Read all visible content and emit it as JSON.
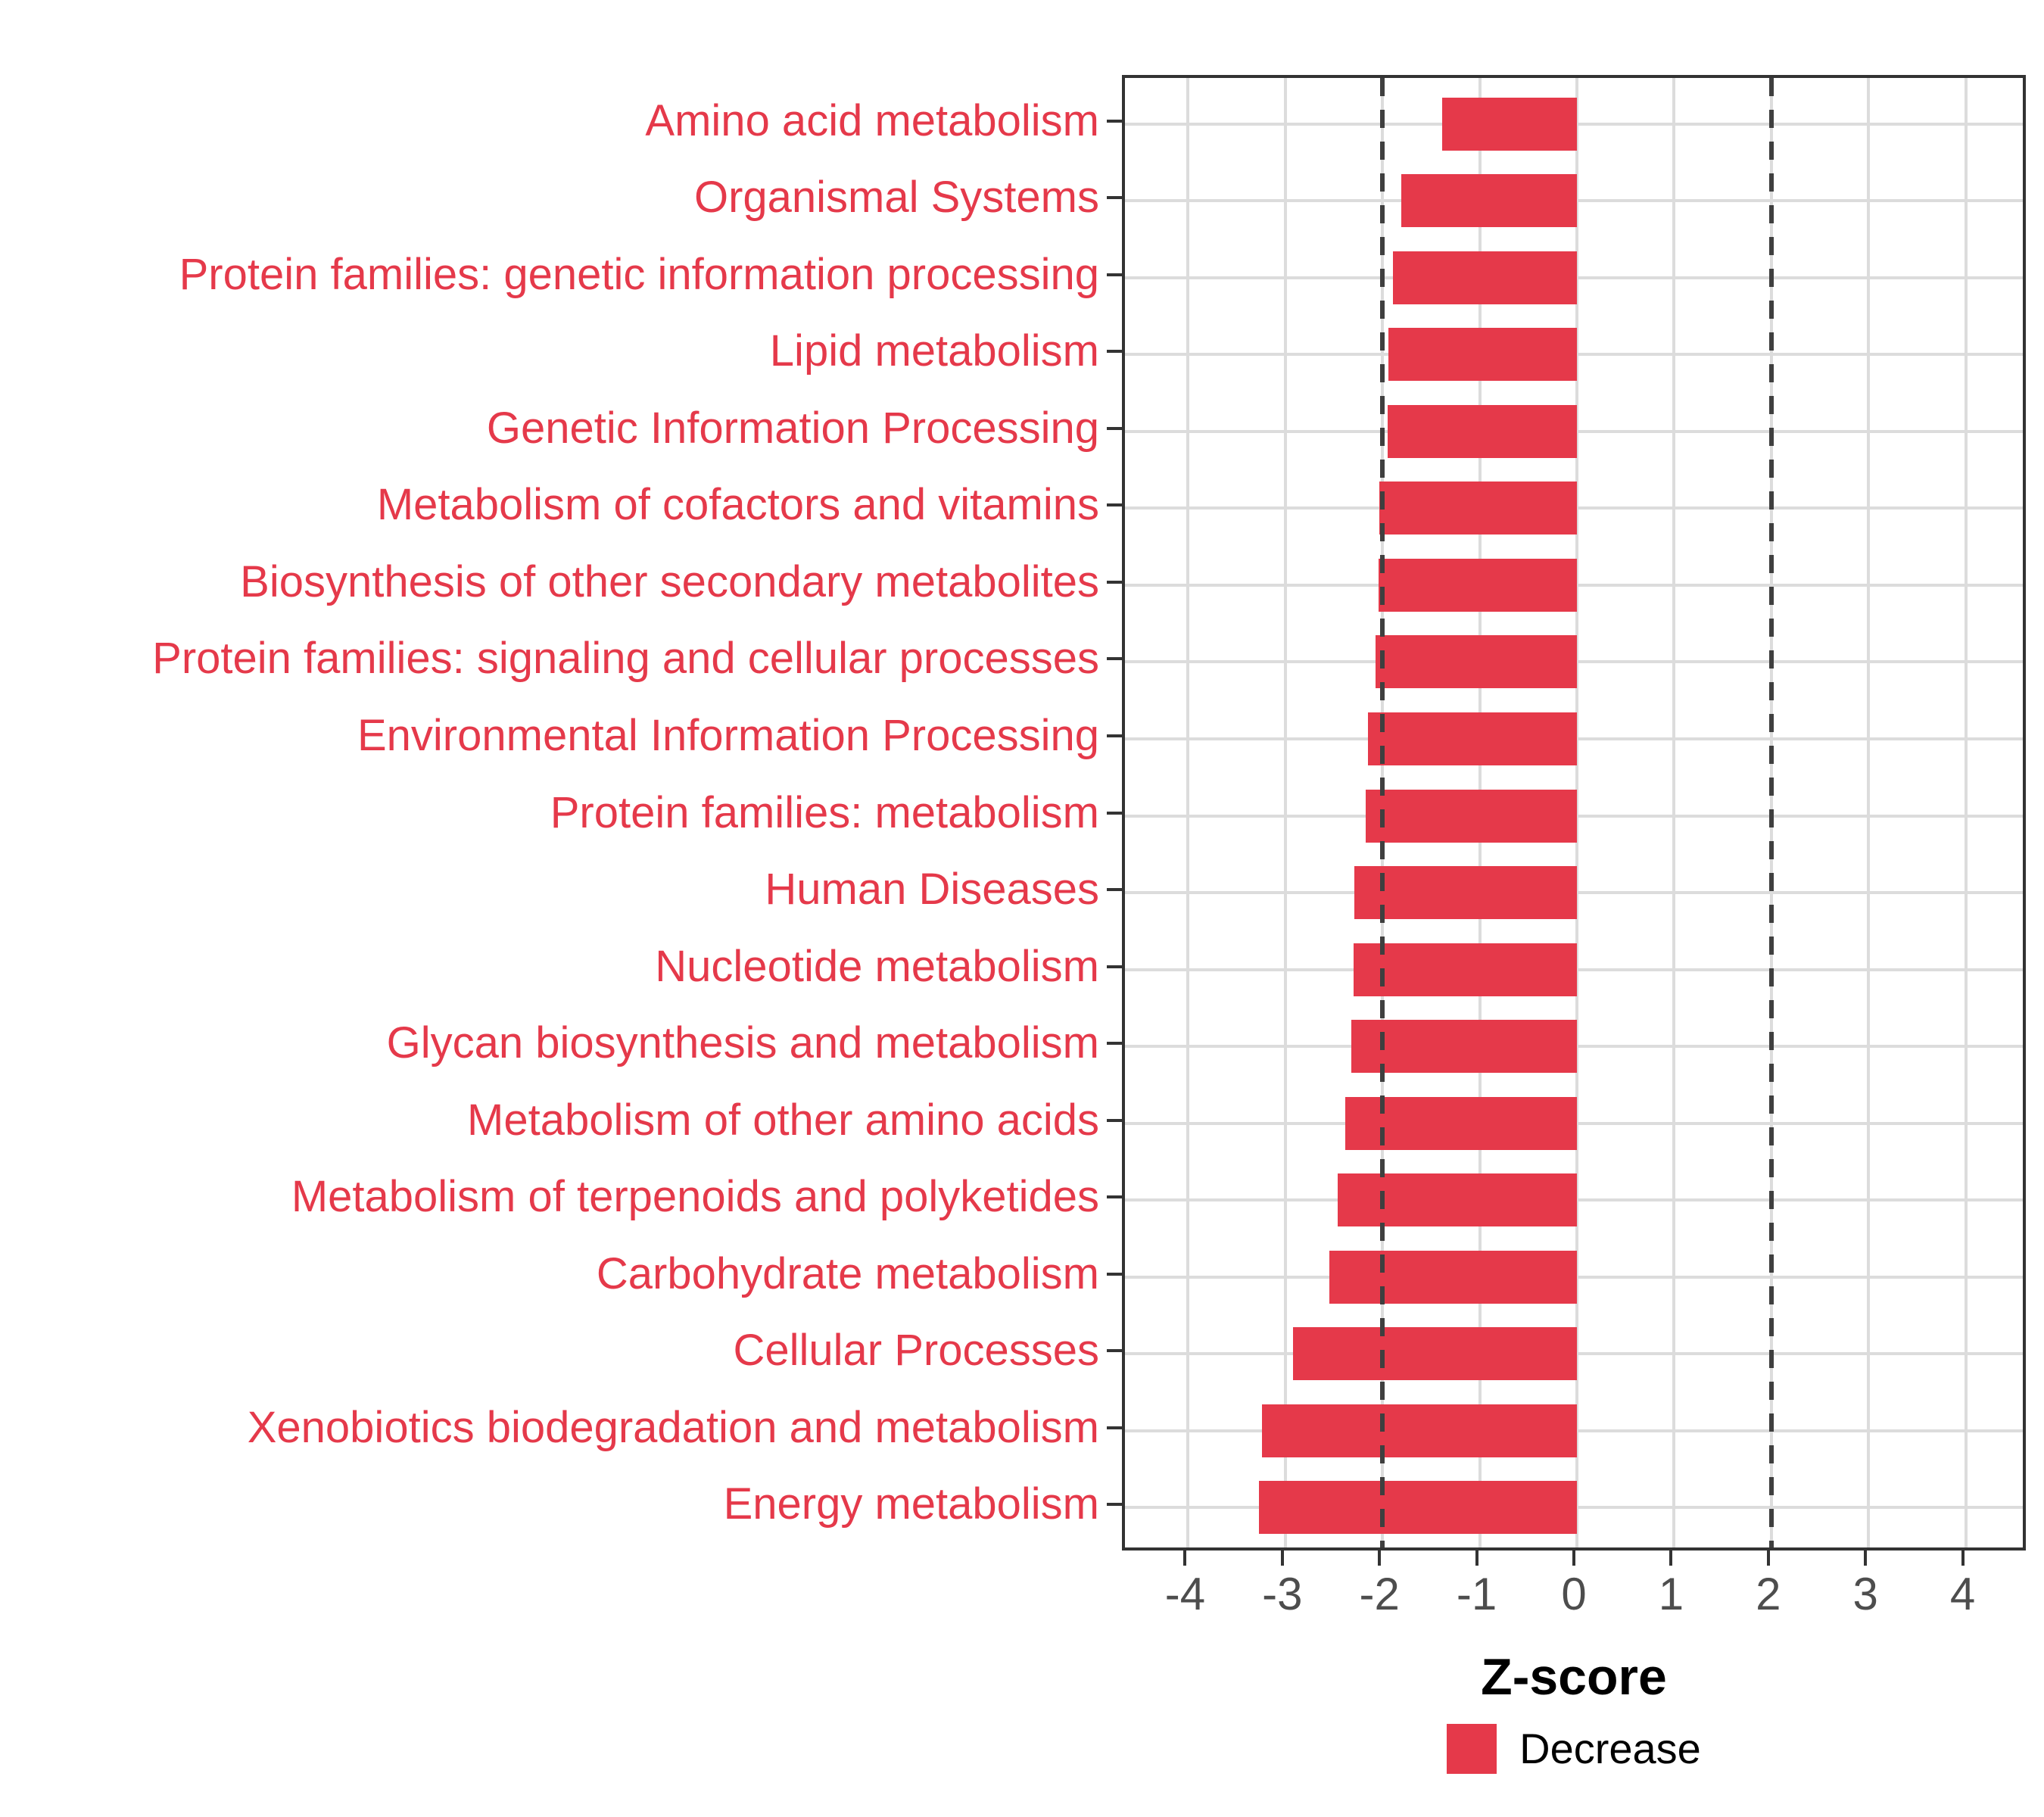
{
  "chart_data": {
    "type": "bar",
    "orientation": "horizontal",
    "title": "",
    "xlabel": "Z-score",
    "categories": [
      "Amino acid metabolism",
      "Organismal Systems",
      "Protein families: genetic information processing",
      "Lipid metabolism",
      "Genetic Information Processing",
      "Metabolism of cofactors and vitamins",
      "Biosynthesis of other secondary metabolites",
      "Protein families: signaling and cellular processes",
      "Environmental Information Processing",
      "Protein families: metabolism",
      "Human Diseases",
      "Nucleotide metabolism",
      "Glycan biosynthesis and metabolism",
      "Metabolism of other amino acids",
      "Metabolism of terpenoids and polyketides",
      "Carbohydrate metabolism",
      "Cellular Processes",
      "Xenobiotics biodegradation and metabolism",
      "Energy metabolism"
    ],
    "values": [
      -1.39,
      -1.81,
      -1.89,
      -1.94,
      -1.95,
      -2.03,
      -2.04,
      -2.07,
      -2.15,
      -2.17,
      -2.29,
      -2.3,
      -2.32,
      -2.38,
      -2.46,
      -2.55,
      -2.92,
      -3.24,
      -3.27
    ],
    "xticks": [
      -4,
      -3,
      -2,
      -1,
      0,
      1,
      2,
      3,
      4
    ],
    "xtick_labels": [
      "-4",
      "-3",
      "-2",
      "-1",
      "0",
      "1",
      "2",
      "3",
      "4"
    ],
    "xlim": [
      -4.65,
      4.65
    ],
    "reference_lines": [
      -2,
      2
    ],
    "grid": true,
    "legend": {
      "label": "Decrease",
      "color": "#e5394a",
      "position": "bottom"
    },
    "colors": {
      "bar": "#e5394a",
      "category_label": "#e5394a",
      "tick_label": "#4d4d4d",
      "gridline": "#dcdcdc",
      "panel_border": "#333333",
      "reference_line": "#3f3f3f"
    }
  }
}
